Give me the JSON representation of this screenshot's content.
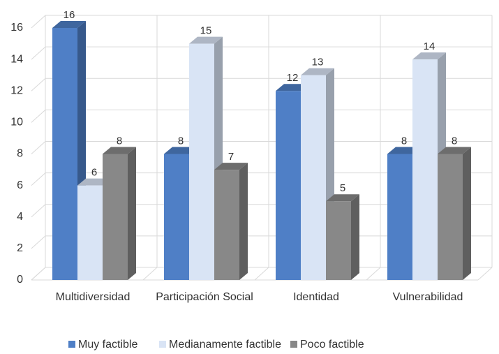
{
  "chart_data": {
    "type": "bar3d",
    "categories": [
      "Multidiversidad",
      "Participación Social",
      "Identidad",
      "Vulnerabilidad"
    ],
    "series": [
      {
        "name": "Muy factible",
        "color": "#4f7fc6",
        "values": [
          16,
          8,
          12,
          8
        ]
      },
      {
        "name": "Medianamente factible",
        "color": "#d9e4f5",
        "values": [
          6,
          15,
          13,
          14
        ]
      },
      {
        "name": "Poco factible",
        "color": "#888888",
        "values": [
          8,
          7,
          5,
          8
        ]
      }
    ],
    "ylim": [
      0,
      16
    ],
    "yticks": [
      0,
      2,
      4,
      6,
      8,
      10,
      12,
      14,
      16
    ],
    "grid": true,
    "legend": "bottom"
  }
}
